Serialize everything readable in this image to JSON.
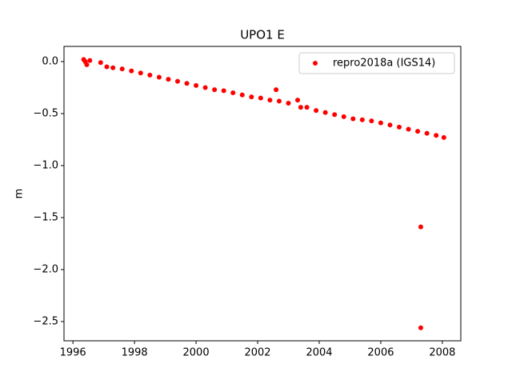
{
  "chart_data": {
    "type": "scatter",
    "title": "UPO1 E",
    "y_label": "m",
    "series": [
      {
        "name": "repro2018a (IGS14)",
        "color": "#ff0000",
        "x": [
          1996.35,
          1996.4,
          1996.45,
          1996.55,
          1996.9,
          1997.1,
          1997.3,
          1997.6,
          1997.9,
          1998.2,
          1998.5,
          1998.8,
          1999.1,
          1999.4,
          1999.7,
          2000.0,
          2000.3,
          2000.6,
          2000.9,
          2001.2,
          2001.5,
          2001.8,
          2002.1,
          2002.4,
          2002.6,
          2002.7,
          2003.0,
          2003.3,
          2003.4,
          2003.6,
          2003.9,
          2004.2,
          2004.5,
          2004.8,
          2005.1,
          2005.4,
          2005.7,
          2006.0,
          2006.3,
          2006.6,
          2006.9,
          2007.2,
          2007.3,
          2007.3,
          2007.5,
          2007.8,
          2008.05
        ],
        "values": [
          0.02,
          0.0,
          -0.03,
          0.01,
          -0.01,
          -0.05,
          -0.06,
          -0.07,
          -0.09,
          -0.11,
          -0.13,
          -0.15,
          -0.17,
          -0.19,
          -0.21,
          -0.23,
          -0.25,
          -0.27,
          -0.28,
          -0.3,
          -0.32,
          -0.34,
          -0.35,
          -0.37,
          -0.27,
          -0.38,
          -0.4,
          -0.37,
          -0.44,
          -0.44,
          -0.47,
          -0.49,
          -0.51,
          -0.53,
          -0.55,
          -0.56,
          -0.57,
          -0.59,
          -0.61,
          -0.63,
          -0.65,
          -0.67,
          -1.59,
          -2.56,
          -0.69,
          -0.71,
          -0.73
        ]
      }
    ],
    "xlim": [
      1995.71,
      2008.6
    ],
    "ylim": [
      -2.685,
      0.146
    ],
    "xticks": [
      1996,
      1998,
      2000,
      2002,
      2004,
      2006,
      2008
    ],
    "yticks": [
      {
        "value": 0.0,
        "label": "0.0"
      },
      {
        "value": -0.5,
        "label": "−0.5"
      },
      {
        "value": -1.0,
        "label": "−1.0"
      },
      {
        "value": -1.5,
        "label": "−1.5"
      },
      {
        "value": -2.0,
        "label": "−2.0"
      },
      {
        "value": -2.5,
        "label": "−2.5"
      }
    ],
    "legend": "upper right"
  }
}
